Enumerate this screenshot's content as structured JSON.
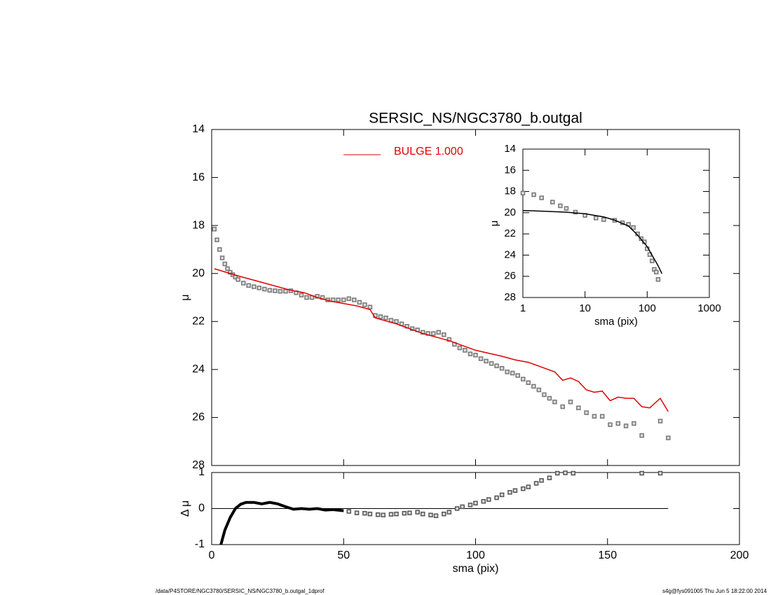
{
  "chart_data": [
    {
      "type": "line",
      "title": "SERSIC_NS/NGC3780_b.outgal",
      "ylabel": "μ",
      "xlim": [
        0,
        200
      ],
      "ylim": [
        28,
        14
      ],
      "yticks": [
        14,
        16,
        18,
        20,
        22,
        24,
        26,
        28
      ],
      "legend": "upper center",
      "series": [
        {
          "color": "#777777",
          "mode": "markers",
          "x": [
            1,
            2,
            3,
            4,
            5,
            6,
            7,
            8,
            9,
            10,
            12,
            14,
            16,
            18,
            20,
            22,
            24,
            26,
            28,
            30,
            32,
            34,
            36,
            38,
            40,
            42,
            44,
            46,
            48,
            50,
            52,
            54,
            56,
            58,
            60,
            62,
            64,
            66,
            68,
            70,
            72,
            74,
            76,
            78,
            80,
            82,
            84,
            86,
            88,
            90,
            92,
            94,
            96,
            98,
            100,
            102,
            104,
            106,
            108,
            110,
            112,
            114,
            116,
            118,
            120,
            122,
            124,
            126,
            128,
            130,
            133,
            136,
            139,
            142,
            145,
            148,
            151,
            154,
            157,
            160,
            163,
            170,
            173
          ],
          "values": [
            18.15,
            18.6,
            19.0,
            19.35,
            19.6,
            19.8,
            19.95,
            20.05,
            20.15,
            20.25,
            20.4,
            20.5,
            20.55,
            20.6,
            20.65,
            20.7,
            20.72,
            20.74,
            20.74,
            20.72,
            20.8,
            20.9,
            21.0,
            21.0,
            20.95,
            21.0,
            21.1,
            21.1,
            21.1,
            21.1,
            21.05,
            21.1,
            21.2,
            21.3,
            21.4,
            21.75,
            21.8,
            21.85,
            21.95,
            22.0,
            22.1,
            22.2,
            22.3,
            22.35,
            22.45,
            22.5,
            22.5,
            22.45,
            22.55,
            22.75,
            22.95,
            23.1,
            23.2,
            23.35,
            23.4,
            23.55,
            23.65,
            23.75,
            23.85,
            23.95,
            24.1,
            24.15,
            24.25,
            24.4,
            24.55,
            24.7,
            24.85,
            25.05,
            25.2,
            25.35,
            25.55,
            25.35,
            25.6,
            25.8,
            25.95,
            25.95,
            26.3,
            26.25,
            26.35,
            26.25,
            26.75,
            26.15,
            26.85
          ]
        },
        {
          "name": "BULGE  1.000",
          "color": "#e00000",
          "mode": "line",
          "x": [
            1,
            10,
            20,
            30,
            35,
            40,
            45,
            50,
            55,
            60,
            62,
            70,
            80,
            90,
            100,
            110,
            115,
            120,
            125,
            130,
            133,
            136,
            139,
            142,
            145,
            148,
            151,
            154,
            157,
            160,
            163,
            166,
            170,
            173
          ],
          "values": [
            19.8,
            20.1,
            20.4,
            20.7,
            20.8,
            21.0,
            21.15,
            21.25,
            21.35,
            21.5,
            21.85,
            22.1,
            22.5,
            22.8,
            23.2,
            23.45,
            23.6,
            23.7,
            23.9,
            24.1,
            24.45,
            24.35,
            24.5,
            24.85,
            24.95,
            24.9,
            25.3,
            25.15,
            25.2,
            25.2,
            25.55,
            25.6,
            25.2,
            25.75
          ]
        }
      ]
    },
    {
      "type": "line",
      "xlabel": "sma (pix)",
      "ylabel": "Δ μ",
      "xlim": [
        0,
        200
      ],
      "xticks": [
        0,
        50,
        100,
        150,
        200
      ],
      "ylim": [
        -1,
        1
      ],
      "yticks": [
        -1,
        0,
        1
      ],
      "hline": {
        "y": 0,
        "xlim": [
          0,
          173
        ]
      },
      "series": [
        {
          "color": "#000000",
          "mode": "line",
          "line_width": 4,
          "x": [
            3.5,
            5,
            7,
            9,
            11,
            13,
            16,
            19,
            22,
            25,
            28,
            31,
            34,
            37,
            40,
            43,
            46,
            50
          ],
          "values": [
            -1,
            -0.6,
            -0.25,
            0.0,
            0.12,
            0.17,
            0.17,
            0.13,
            0.17,
            0.13,
            0.05,
            -0.02,
            0.0,
            -0.02,
            0.0,
            -0.04,
            -0.03,
            -0.06
          ]
        },
        {
          "color": "#555555",
          "mode": "markers",
          "x": [
            52,
            55,
            58,
            60,
            63,
            65,
            68,
            70,
            73,
            75,
            78,
            80,
            83,
            85,
            88,
            90,
            93,
            95,
            98,
            100,
            103,
            105,
            108,
            110,
            113,
            115,
            118,
            120,
            123,
            125,
            128,
            131,
            134,
            137,
            163,
            170
          ],
          "values": [
            -0.08,
            -0.12,
            -0.13,
            -0.15,
            -0.17,
            -0.18,
            -0.16,
            -0.15,
            -0.13,
            -0.12,
            -0.1,
            -0.15,
            -0.18,
            -0.2,
            -0.15,
            -0.1,
            0.0,
            0.05,
            0.1,
            0.15,
            0.2,
            0.25,
            0.3,
            0.38,
            0.45,
            0.5,
            0.55,
            0.6,
            0.7,
            0.78,
            0.85,
            0.98,
            0.99,
            0.98,
            0.98,
            0.98
          ]
        }
      ]
    },
    {
      "type": "line",
      "xlabel": "sma (pix)",
      "ylabel": "μ",
      "xscale": "log",
      "xlim": [
        1,
        1000
      ],
      "xticks": [
        1,
        10,
        100,
        1000
      ],
      "ylim": [
        28,
        14
      ],
      "yticks": [
        14,
        16,
        18,
        20,
        22,
        24,
        26,
        28
      ],
      "series": [
        {
          "color": "#777777",
          "mode": "markers",
          "x": [
            1,
            1.5,
            2,
            3,
            4,
            5,
            7,
            10,
            15,
            20,
            30,
            40,
            50,
            60,
            70,
            80,
            90,
            100,
            110,
            120,
            130,
            140,
            150
          ],
          "values": [
            18.15,
            18.3,
            18.6,
            19.0,
            19.35,
            19.6,
            19.95,
            20.25,
            20.5,
            20.65,
            20.72,
            20.95,
            21.1,
            21.4,
            22.0,
            22.45,
            22.75,
            23.4,
            23.95,
            24.55,
            25.35,
            25.6,
            26.3
          ]
        },
        {
          "color": "#000000",
          "mode": "line",
          "x": [
            1,
            2,
            5,
            10,
            20,
            30,
            50,
            70,
            100,
            150,
            173
          ],
          "values": [
            19.8,
            19.85,
            19.95,
            20.1,
            20.4,
            20.7,
            21.25,
            22.1,
            23.2,
            25.0,
            25.75
          ]
        }
      ]
    }
  ],
  "footer": {
    "left": "/data/P4STORE/NGC3780/SERSIC_NS/NGC3780_b.outgal_1dprof",
    "right": "s4g@fys091005  Thu Jun  5 18:22:00 2014"
  }
}
